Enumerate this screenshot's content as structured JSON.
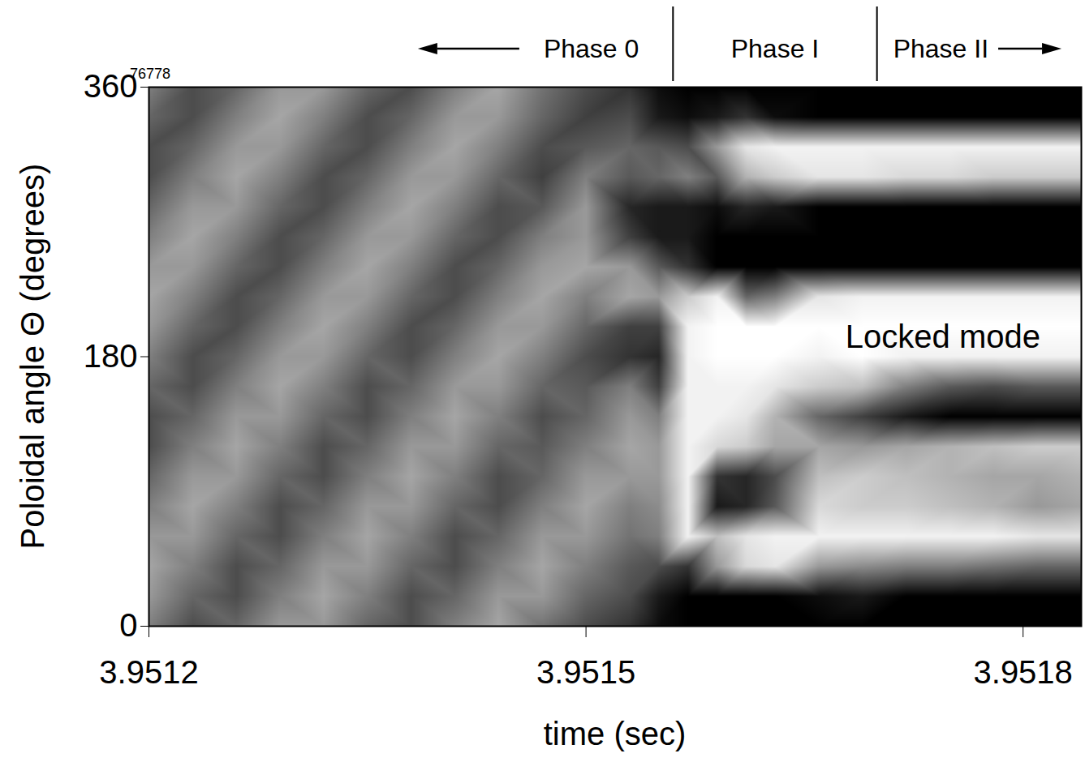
{
  "chart_data": {
    "type": "heatmap",
    "xlabel": "time (sec)",
    "ylabel": "Poloidal angle Θ (degrees)",
    "xlim": [
      3.9512,
      3.95184
    ],
    "ylim": [
      0,
      360
    ],
    "xticks": [
      3.9512,
      3.9515,
      3.9518
    ],
    "yticks": [
      0,
      180,
      360
    ],
    "shot": "76778",
    "phases": {
      "labels": [
        "Phase 0",
        "Phase I",
        "Phase II"
      ],
      "boundaries": [
        3.95156,
        3.9517
      ]
    },
    "annotations": [
      {
        "text": "Locked mode",
        "x": 3.951745,
        "y": 193
      }
    ],
    "cells": {
      "zlim": [
        -10,
        10
      ],
      "x": [
        3.9512,
        3.95123,
        3.95126,
        3.95129,
        3.95132,
        3.95135,
        3.95138,
        3.95141,
        3.95144,
        3.95147,
        3.9515,
        3.95153,
        3.95155,
        3.95157,
        3.95159,
        3.95161,
        3.95163,
        3.95166,
        3.95169,
        3.95172,
        3.95175,
        3.95178,
        3.95181,
        3.95184
      ],
      "y": [
        0,
        20,
        40,
        60,
        80,
        100,
        120,
        140,
        160,
        180,
        200,
        220,
        240,
        260,
        280,
        300,
        320,
        340,
        360
      ],
      "values": [
        [
          0,
          2,
          3,
          2,
          0,
          -2,
          -4,
          -4,
          -2,
          0,
          2,
          3,
          2,
          0,
          -2,
          -4,
          -4,
          -2,
          0
        ],
        [
          -4,
          -2,
          0,
          2,
          3,
          2,
          0,
          -2,
          -4,
          -4,
          -2,
          0,
          2,
          3,
          2,
          0,
          -2,
          -4,
          -4
        ],
        [
          -2,
          -4,
          -4,
          -2,
          0,
          2,
          3,
          2,
          0,
          -2,
          -4,
          -4,
          -2,
          0,
          2,
          3,
          2,
          0,
          -2
        ],
        [
          2,
          0,
          -2,
          -4,
          -4,
          -2,
          0,
          2,
          3,
          2,
          0,
          -2,
          -4,
          -4,
          -2,
          0,
          2,
          3,
          2
        ],
        [
          2,
          3,
          2,
          0,
          -2,
          -4,
          -4,
          -2,
          0,
          2,
          3,
          2,
          0,
          -2,
          -4,
          -4,
          -2,
          0,
          2
        ],
        [
          -2,
          0,
          2,
          3,
          2,
          0,
          -2,
          -4,
          -4,
          -2,
          0,
          2,
          3,
          2,
          0,
          -2,
          -4,
          -4,
          -2
        ],
        [
          -4,
          -4,
          -2,
          0,
          2,
          3,
          2,
          0,
          -2,
          -4,
          -4,
          -2,
          0,
          2,
          3,
          2,
          0,
          -2,
          -4
        ],
        [
          0,
          -2,
          -4,
          -4,
          -2,
          0,
          2,
          3,
          2,
          0,
          -2,
          -4,
          -4,
          -2,
          0,
          2,
          3,
          2,
          0
        ],
        [
          3,
          2,
          0,
          -2,
          -4,
          -4,
          -2,
          0,
          2,
          3,
          2,
          0,
          -2,
          -4,
          -4,
          -2,
          0,
          2,
          3
        ],
        [
          -1,
          2,
          3,
          2,
          0,
          -2,
          -3,
          -4,
          -2,
          0,
          2,
          3,
          2,
          0,
          -3,
          -5,
          -4,
          -2,
          -1
        ],
        [
          -4,
          -2,
          0,
          2,
          3,
          2,
          0,
          -2,
          -3,
          -4,
          -2,
          0,
          3,
          2,
          2,
          0,
          -3,
          -5,
          -4
        ],
        [
          -6,
          -4,
          -3,
          -1,
          0,
          2,
          3,
          2,
          0,
          -6,
          -5,
          3,
          2,
          -5,
          -7,
          -3,
          -2,
          -4,
          -6
        ],
        [
          -9,
          -8,
          -4,
          0,
          1,
          2,
          2,
          0,
          -5,
          -7,
          -5,
          2,
          -3,
          -8,
          -8,
          -2,
          -3,
          -8,
          -9
        ],
        [
          -10,
          -10,
          -6,
          9,
          9,
          9,
          9,
          9,
          9,
          9,
          9,
          6,
          -6,
          -8,
          -8,
          0,
          -4,
          -9,
          -10
        ],
        [
          -10,
          -10,
          2,
          5,
          -8,
          -6,
          7,
          9,
          9,
          10,
          10,
          9,
          -10,
          -10,
          -9,
          -3,
          2,
          -8,
          -10
        ],
        [
          -10,
          -10,
          7,
          8,
          -7,
          -7,
          6,
          8,
          9,
          10,
          10,
          -2,
          -10,
          -10,
          -7,
          4,
          8,
          -6,
          -10
        ],
        [
          -10,
          -10,
          8,
          9,
          -3,
          -4,
          3,
          4,
          8,
          10,
          10,
          0,
          -10,
          -10,
          -8,
          6,
          9,
          -9,
          -10
        ],
        [
          -10,
          -9,
          2,
          9,
          7,
          5,
          3,
          -2,
          6,
          9,
          10,
          8,
          -10,
          -10,
          -10,
          8,
          9,
          -10,
          -10
        ],
        [
          -10,
          -8,
          1,
          9,
          6,
          6,
          2,
          -5,
          5,
          10,
          10,
          9,
          -10,
          -10,
          -10,
          8,
          9,
          -10,
          -10
        ],
        [
          -10,
          -10,
          0,
          9,
          6,
          5,
          3,
          -8,
          0,
          9,
          10,
          9,
          -10,
          -10,
          -10,
          7,
          9,
          -10,
          -10
        ],
        [
          -10,
          -10,
          0,
          9,
          5,
          4,
          4,
          -10,
          -3,
          9,
          10,
          9,
          -10,
          -10,
          -10,
          7,
          9,
          -10,
          -10
        ],
        [
          -10,
          -10,
          -1,
          9,
          4,
          3,
          5,
          -10,
          -4,
          9,
          10,
          9,
          -10,
          -10,
          -10,
          6,
          9,
          -10,
          -10
        ],
        [
          -10,
          -10,
          -2,
          8,
          2,
          3,
          6,
          -10,
          -3,
          9,
          10,
          9,
          -10,
          -10,
          -10,
          6,
          9,
          -10,
          -10
        ],
        [
          -10,
          -10,
          -2,
          8,
          3,
          4,
          6,
          -10,
          -3,
          9,
          10,
          9,
          -10,
          -10,
          -10,
          6,
          9,
          -10,
          -10
        ]
      ]
    }
  }
}
